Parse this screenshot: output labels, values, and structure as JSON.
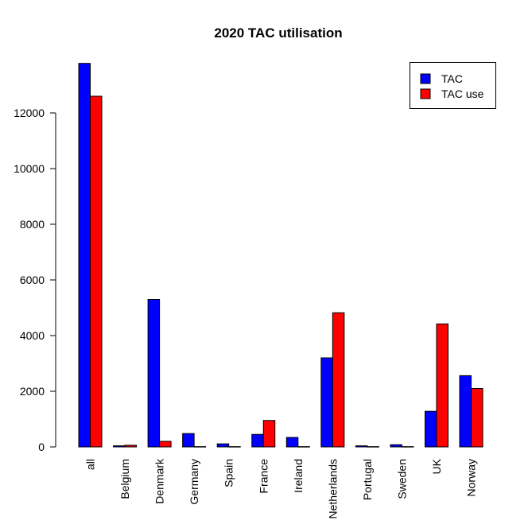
{
  "chart_data": {
    "type": "bar",
    "title": "2020 TAC utilisation",
    "xlabel": "",
    "ylabel": "",
    "categories": [
      "all",
      "Belgium",
      "Denmark",
      "Germany",
      "Spain",
      "France",
      "Ireland",
      "Netherlands",
      "Portugal",
      "Sweden",
      "UK",
      "Norway"
    ],
    "series": [
      {
        "name": "TAC",
        "color": "#0000ff",
        "values": [
          13780,
          40,
          5300,
          480,
          110,
          450,
          340,
          3200,
          40,
          80,
          1280,
          2560
        ]
      },
      {
        "name": "TAC use",
        "color": "#ff0000",
        "values": [
          12600,
          60,
          200,
          10,
          10,
          950,
          10,
          4820,
          10,
          10,
          4420,
          2100
        ]
      }
    ],
    "ylim": [
      0,
      14000
    ],
    "yticks": [
      0,
      2000,
      4000,
      6000,
      8000,
      10000,
      12000
    ],
    "grid": false,
    "legend_position": "top-right"
  }
}
